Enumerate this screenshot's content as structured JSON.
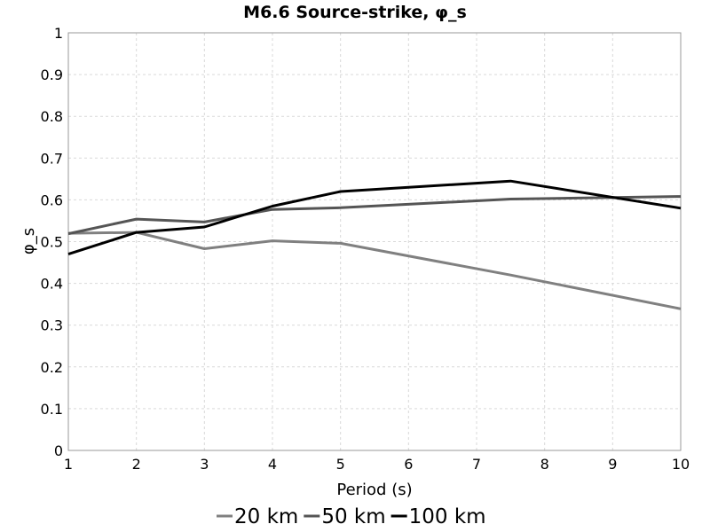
{
  "chart_data": {
    "type": "line",
    "title": "M6.6 Source-strike, φ_s",
    "xlabel": "Period (s)",
    "ylabel": "φ_s",
    "xlim": [
      1,
      10
    ],
    "ylim": [
      0,
      1
    ],
    "x_ticks": [
      "1",
      "2",
      "3",
      "4",
      "5",
      "6",
      "7",
      "8",
      "9",
      "10"
    ],
    "y_ticks": [
      "0",
      "0.1",
      "0.2",
      "0.3",
      "0.4",
      "0.5",
      "0.6",
      "0.7",
      "0.8",
      "0.9",
      "1"
    ],
    "grid": true,
    "legend_position": "bottom",
    "series": [
      {
        "name": "20 km",
        "color": "#808080",
        "points": [
          [
            1,
            0.52
          ],
          [
            2,
            0.522
          ],
          [
            3,
            0.483
          ],
          [
            4,
            0.502
          ],
          [
            5,
            0.496
          ],
          [
            7.5,
            0.42
          ],
          [
            10,
            0.339
          ]
        ]
      },
      {
        "name": "50 km",
        "color": "#555555",
        "points": [
          [
            1,
            0.519
          ],
          [
            2,
            0.554
          ],
          [
            3,
            0.547
          ],
          [
            4,
            0.577
          ],
          [
            5,
            0.581
          ],
          [
            7.5,
            0.602
          ],
          [
            10,
            0.608
          ]
        ]
      },
      {
        "name": "100 km",
        "color": "#000000",
        "points": [
          [
            1,
            0.47
          ],
          [
            2,
            0.522
          ],
          [
            3,
            0.535
          ],
          [
            4,
            0.585
          ],
          [
            5,
            0.62
          ],
          [
            7.5,
            0.645
          ],
          [
            10,
            0.58
          ]
        ]
      }
    ]
  }
}
